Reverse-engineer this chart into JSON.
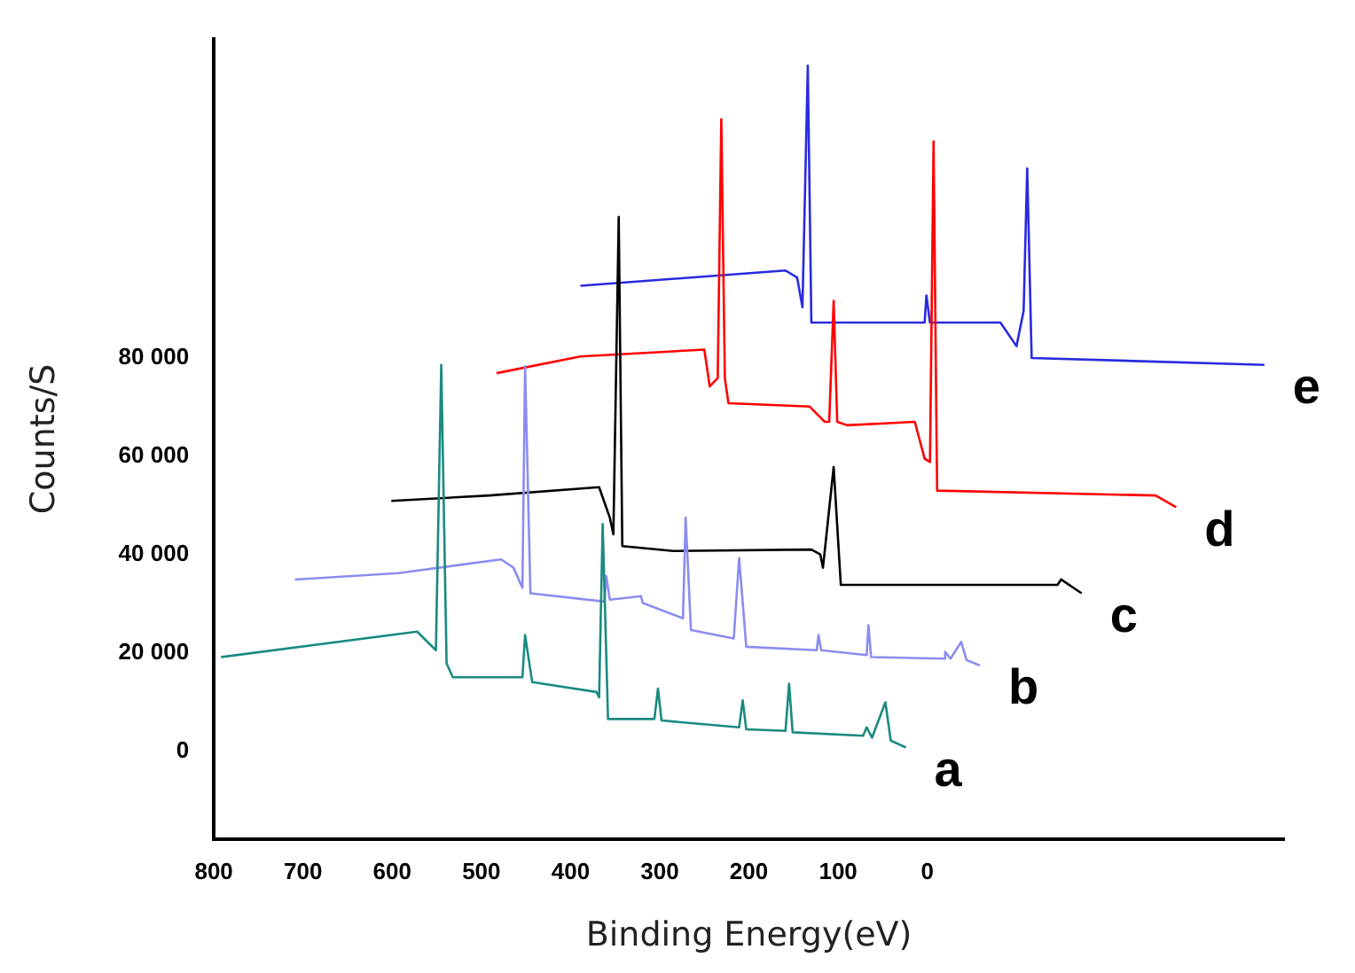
{
  "chart_data": {
    "type": "line",
    "xlabel": "Binding Energy(eV)",
    "ylabel": "Counts/S",
    "xlim": [
      800,
      -400
    ],
    "xticks": [
      800,
      700,
      600,
      500,
      400,
      300,
      200,
      100,
      0
    ],
    "ylim": [
      -18000,
      145000
    ],
    "yticks": [
      0,
      {
        "value": 20000,
        "label": "20 000"
      },
      {
        "value": 40000,
        "label": "40 000"
      },
      {
        "value": 60000,
        "label": "60 000"
      },
      {
        "value": 80000,
        "label": "80 000"
      }
    ],
    "grid": false,
    "legend": false,
    "marker": "none",
    "line_style": "solid",
    "series": [
      {
        "name": "a",
        "color": "#1a8a80",
        "x": [
          792,
          572,
          551,
          545,
          539,
          532,
          454,
          451,
          443,
          371,
          368,
          364,
          358,
          306,
          302,
          298,
          211,
          207,
          203,
          159,
          155,
          151,
          72,
          68,
          62,
          47,
          41,
          24
        ],
        "values": [
          19100,
          24300,
          20500,
          78600,
          17800,
          15000,
          15000,
          23600,
          14000,
          12000,
          10900,
          46200,
          6500,
          6500,
          12700,
          6200,
          4800,
          10300,
          4400,
          4100,
          13700,
          3800,
          3100,
          4800,
          2700,
          9900,
          2100,
          700
        ]
      },
      {
        "name": "b",
        "color": "#8c8cf0",
        "x": [
          709,
          593,
          478,
          464,
          454,
          451,
          445,
          362,
          360,
          356,
          321,
          319,
          274,
          271,
          265,
          217,
          211,
          203,
          124,
          122,
          119,
          68,
          66,
          63,
          -19,
          -20,
          -26,
          -38,
          -44,
          -59
        ],
        "values": [
          34900,
          36200,
          39000,
          37300,
          33200,
          78300,
          32100,
          30400,
          35600,
          30800,
          31500,
          30100,
          27000,
          47500,
          24600,
          22900,
          39300,
          21200,
          20500,
          23600,
          20500,
          19500,
          25600,
          19100,
          18800,
          20200,
          18800,
          22200,
          18500,
          17400
        ]
      },
      {
        "name": "c",
        "color": "#000000",
        "x": [
          601,
          491,
          368,
          356,
          352,
          346,
          342,
          285,
          130,
          120,
          117,
          105,
          97,
          -146,
          -150,
          -173
        ],
        "values": [
          50900,
          52000,
          53700,
          47500,
          44100,
          108700,
          41700,
          40700,
          41000,
          40000,
          37300,
          57800,
          33800,
          33800,
          34900,
          32100
        ]
      },
      {
        "name": "d",
        "color": "#ff0000",
        "x": [
          483,
          389,
          250,
          244,
          235,
          231,
          227,
          223,
          132,
          115,
          110,
          105,
          101,
          90,
          14,
          3,
          -3,
          -7,
          -11,
          -256,
          -279
        ],
        "values": [
          76900,
          80300,
          81700,
          74200,
          75900,
          128600,
          75900,
          70800,
          70100,
          67000,
          67000,
          91600,
          67000,
          66300,
          67000,
          59500,
          58800,
          124100,
          53000,
          52000,
          49600
        ]
      },
      {
        "name": "e",
        "color": "#2a2ae0",
        "x": [
          389,
          159,
          146,
          140,
          134,
          130,
          124,
          3,
          1,
          -3,
          -82,
          -100,
          -108,
          -112,
          -117,
          -378
        ],
        "values": [
          94700,
          97800,
          96400,
          90300,
          139500,
          87200,
          87200,
          87200,
          92700,
          87200,
          87200,
          82400,
          89600,
          118600,
          80000,
          78600
        ]
      }
    ]
  }
}
